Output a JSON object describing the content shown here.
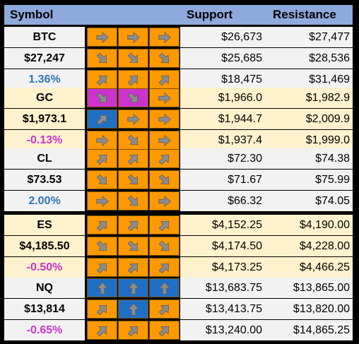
{
  "header": {
    "symbol": "Symbol",
    "support": "Support",
    "resistance": "Resistance"
  },
  "colors": {
    "orange": "#FF9900",
    "magenta": "#CC33CC",
    "blue": "#1F6FC5",
    "arrow": "#8C8C8C",
    "rowWhite": "#F2F2F2",
    "rowCream": "#FFF2CC",
    "header": "#8EA9DB"
  },
  "sections": [
    {
      "symbol": "BTC",
      "price": "$27,247",
      "change": "1.36%",
      "changeSign": "pos",
      "bg": "#F2F2F2",
      "rows": [
        {
          "arrows": [
            [
              "right",
              "orange"
            ],
            [
              "right",
              "orange"
            ],
            [
              "right",
              "orange"
            ]
          ],
          "support": "$26,673",
          "resistance": "$27,477"
        },
        {
          "arrows": [
            [
              "down-right",
              "orange"
            ],
            [
              "down-right",
              "orange"
            ],
            [
              "down-right",
              "orange"
            ]
          ],
          "support": "$25,685",
          "resistance": "$28,536"
        },
        {
          "arrows": [
            [
              "up-right",
              "orange"
            ],
            [
              "up-right",
              "orange"
            ],
            [
              "up-right",
              "orange"
            ]
          ],
          "support": "$18,475",
          "resistance": "$31,469"
        }
      ]
    },
    {
      "symbol": "GC",
      "price": "$1,973.1",
      "change": "-0.13%",
      "changeSign": "neg",
      "bg": "#FFF2CC",
      "rows": [
        {
          "arrows": [
            [
              "down-right",
              "magenta"
            ],
            [
              "down-right",
              "magenta"
            ],
            [
              "right",
              "orange"
            ]
          ],
          "support": "$1,966.0",
          "resistance": "$1,982.9"
        },
        {
          "arrows": [
            [
              "up-right",
              "blue"
            ],
            [
              "right",
              "orange"
            ],
            [
              "right",
              "orange"
            ]
          ],
          "support": "$1,944.7",
          "resistance": "$2,009.9"
        },
        {
          "arrows": [
            [
              "right",
              "orange"
            ],
            [
              "down-right",
              "orange"
            ],
            [
              "right",
              "orange"
            ]
          ],
          "support": "$1,937.4",
          "resistance": "$1,999.0"
        }
      ]
    },
    {
      "symbol": "CL",
      "price": "$73.53",
      "change": "2.00%",
      "changeSign": "pos",
      "bg": "#F2F2F2",
      "rows": [
        {
          "arrows": [
            [
              "up-right",
              "orange"
            ],
            [
              "up-right",
              "orange"
            ],
            [
              "up-right",
              "orange"
            ]
          ],
          "support": "$72.30",
          "resistance": "$74.38"
        },
        {
          "arrows": [
            [
              "down-right",
              "orange"
            ],
            [
              "down-right",
              "orange"
            ],
            [
              "down-right",
              "orange"
            ]
          ],
          "support": "$71.67",
          "resistance": "$75.99"
        },
        {
          "arrows": [
            [
              "right",
              "orange"
            ],
            [
              "down-right",
              "orange"
            ],
            [
              "right",
              "orange"
            ]
          ],
          "support": "$66.32",
          "resistance": "$74.05"
        }
      ]
    },
    {
      "symbol": "ES",
      "price": "$4,185.50",
      "change": "-0.50%",
      "changeSign": "neg",
      "bg": "#FFF2CC",
      "rows": [
        {
          "arrows": [
            [
              "up-right",
              "orange"
            ],
            [
              "up-right",
              "orange"
            ],
            [
              "up-right",
              "orange"
            ]
          ],
          "support": "$4,152.25",
          "resistance": "$4,190.00"
        },
        {
          "arrows": [
            [
              "down-right",
              "orange"
            ],
            [
              "down-right",
              "orange"
            ],
            [
              "down-right",
              "orange"
            ]
          ],
          "support": "$4,174.50",
          "resistance": "$4,228.00"
        },
        {
          "arrows": [
            [
              "up-right",
              "orange"
            ],
            [
              "up-right",
              "orange"
            ],
            [
              "up-right",
              "orange"
            ]
          ],
          "support": "$4,173.25",
          "resistance": "$4,466.25"
        }
      ]
    },
    {
      "symbol": "NQ",
      "price": "$13,814",
      "change": "-0.65%",
      "changeSign": "neg",
      "bg": "#F2F2F2",
      "rows": [
        {
          "arrows": [
            [
              "up",
              "blue"
            ],
            [
              "up",
              "blue"
            ],
            [
              "up",
              "blue"
            ]
          ],
          "support": "$13,683.75",
          "resistance": "$13,865.00"
        },
        {
          "arrows": [
            [
              "up-right",
              "orange"
            ],
            [
              "up",
              "blue"
            ],
            [
              "up-right",
              "orange"
            ]
          ],
          "support": "$13,413.75",
          "resistance": "$13,820.00"
        },
        {
          "arrows": [
            [
              "up-right",
              "orange"
            ],
            [
              "up-right",
              "orange"
            ],
            [
              "up-right",
              "orange"
            ]
          ],
          "support": "$13,240.00",
          "resistance": "$14,865.25"
        }
      ]
    }
  ]
}
